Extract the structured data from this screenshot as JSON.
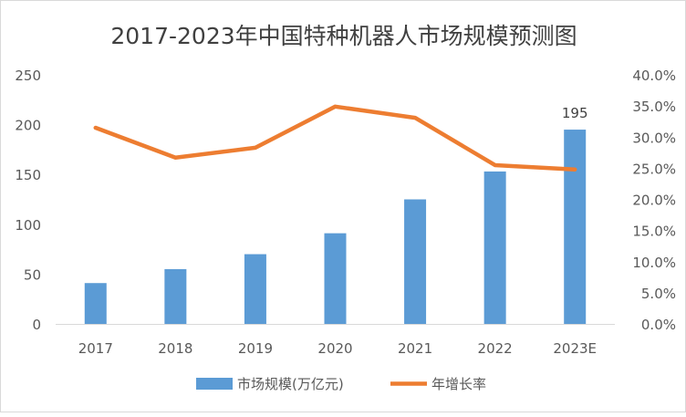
{
  "chart_data": {
    "type": "bar+line",
    "title": "2017-2023年中国特种机器人市场规模预测图",
    "categories": [
      "2017",
      "2018",
      "2019",
      "2020",
      "2021",
      "2022",
      "2023E"
    ],
    "series": [
      {
        "name": "市场规模(万亿元)",
        "type": "bar",
        "axis": "left",
        "color": "#5b9bd5",
        "values": [
          41,
          55,
          70,
          91,
          125,
          153,
          195
        ]
      },
      {
        "name": "年增长率",
        "type": "line",
        "axis": "right",
        "color": "#ed7d31",
        "values": [
          31.5,
          26.7,
          28.3,
          34.9,
          33.1,
          25.5,
          24.8
        ]
      }
    ],
    "data_labels": [
      {
        "category": "2023E",
        "series": "市场规模(万亿元)",
        "text": "195"
      }
    ],
    "left_axis": {
      "ylim": [
        0,
        250
      ],
      "ticks": [
        "0",
        "50",
        "100",
        "150",
        "200",
        "250"
      ]
    },
    "right_axis": {
      "ylim": [
        0,
        40
      ],
      "ticks": [
        "0.0%",
        "5.0%",
        "10.0%",
        "15.0%",
        "20.0%",
        "25.0%",
        "30.0%",
        "35.0%",
        "40.0%"
      ]
    },
    "grid": false,
    "legend": "bottom"
  }
}
